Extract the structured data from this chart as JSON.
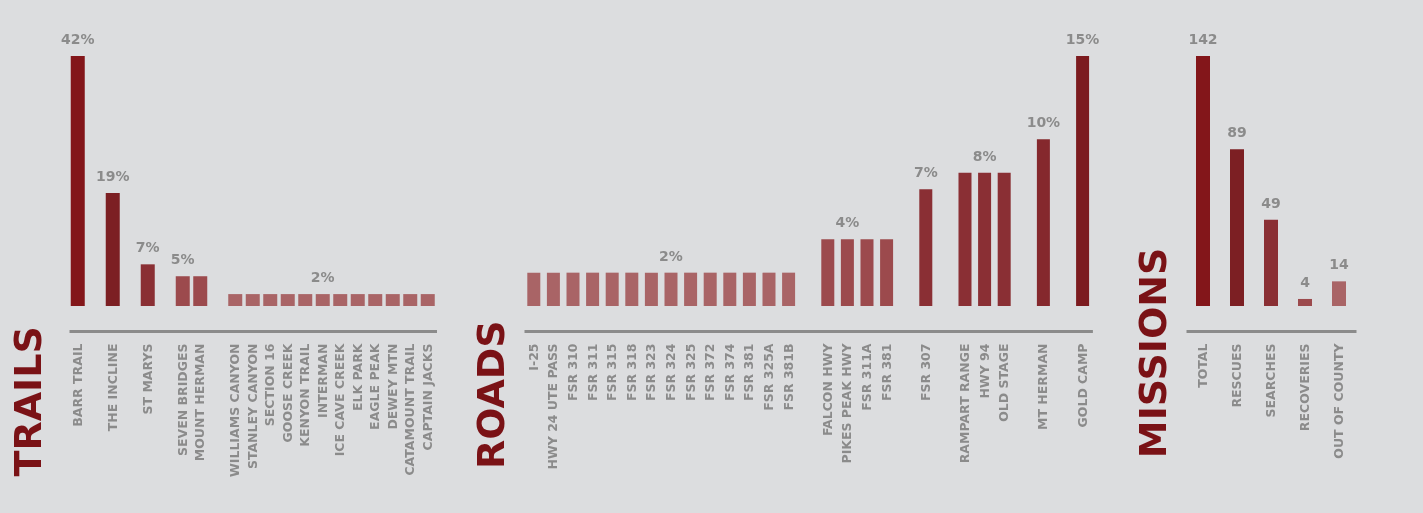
{
  "chart_data": [
    {
      "type": "bar",
      "title": "TRAILS",
      "categories": [
        "BARR TRAIL",
        null,
        "THE INCLINE",
        null,
        "ST MARYS",
        null,
        "SEVEN BRIDGES",
        "MOUNT HERMAN",
        null,
        "WILLIAMS CANYON",
        "STANLEY CANYON",
        "SECTION 16",
        "GOOSE CREEK",
        "KENYON TRAIL",
        "INTERMAN",
        "ICE CAVE CREEK",
        "ELK PARK",
        "EAGLE PEAK",
        "DEWEY MTN",
        "CATAMOUNT TRAIL",
        "CAPTAIN JACKS"
      ],
      "values": [
        42,
        null,
        19,
        null,
        7,
        null,
        5,
        5,
        null,
        2,
        2,
        2,
        2,
        2,
        2,
        2,
        2,
        2,
        2,
        2,
        2
      ],
      "value_labels": [
        "42%",
        null,
        "19%",
        null,
        "7%",
        null,
        "5%",
        null,
        null,
        null,
        null,
        null,
        null,
        null,
        "2%",
        null,
        null,
        null,
        null,
        null,
        null
      ],
      "colors": [
        "#83161a",
        null,
        "#7c1f23",
        null,
        "#8a2f34",
        null,
        "#9c4a4d",
        "#9c4a4d",
        null,
        "#a96466",
        "#a96466",
        "#a96466",
        "#a96466",
        "#a96466",
        "#a96466",
        "#a96466",
        "#a96466",
        "#a96466",
        "#a96466",
        "#a96466",
        "#a96466"
      ]
    },
    {
      "type": "bar",
      "title": "ROADS",
      "categories": [
        "I-25",
        "HWY 24 UTE PASS",
        "FSR 310",
        "FSR 311",
        "FSR 315",
        "FSR 318",
        "FSR 323",
        "FSR 324",
        "FSR 325",
        "FSR 372",
        "FSR 374",
        "FSR 381",
        "FSR 325A",
        "FSR 381B",
        null,
        "FALCON HWY",
        "PIKES PEAK HWY",
        "FSR 311A",
        "FSR 381",
        null,
        "FSR 307",
        null,
        "RAMPART RANGE",
        "HWY 94",
        "OLD STAGE",
        null,
        "MT HERMAN",
        null,
        "GOLD CAMP"
      ],
      "values": [
        2,
        2,
        2,
        2,
        2,
        2,
        2,
        2,
        2,
        2,
        2,
        2,
        2,
        2,
        null,
        4,
        4,
        4,
        4,
        null,
        7,
        null,
        8,
        8,
        8,
        null,
        10,
        null,
        15
      ],
      "value_labels": [
        null,
        null,
        null,
        null,
        null,
        null,
        null,
        "2%",
        null,
        null,
        null,
        null,
        null,
        null,
        null,
        null,
        "4%",
        null,
        null,
        null,
        "7%",
        null,
        null,
        "8%",
        null,
        null,
        "10%",
        null,
        "15%"
      ],
      "colors": [
        "#a96466",
        "#a96466",
        "#a96466",
        "#a96466",
        "#a96466",
        "#a96466",
        "#a96466",
        "#a96466",
        "#a96466",
        "#a96466",
        "#a96466",
        "#a96466",
        "#a96466",
        "#a96466",
        null,
        "#9c4a4d",
        "#9c4a4d",
        "#9c4a4d",
        "#9c4a4d",
        null,
        "#8a2f34",
        null,
        "#8a2f34",
        "#8a2f34",
        "#8a2f34",
        null,
        "#85282d",
        null,
        "#7c1b1f"
      ]
    },
    {
      "type": "bar",
      "title": "MISSIONS",
      "categories": [
        "TOTAL",
        "RESCUES",
        "SEARCHES",
        "RECOVERIES",
        "OUT OF COUNTY"
      ],
      "values": [
        142,
        89,
        49,
        4,
        14
      ],
      "value_labels": [
        "142",
        "89",
        "49",
        "4",
        "14"
      ],
      "colors": [
        "#83161a",
        "#7c1f23",
        "#8a2f34",
        "#9c4a4d",
        "#a96466"
      ]
    }
  ]
}
